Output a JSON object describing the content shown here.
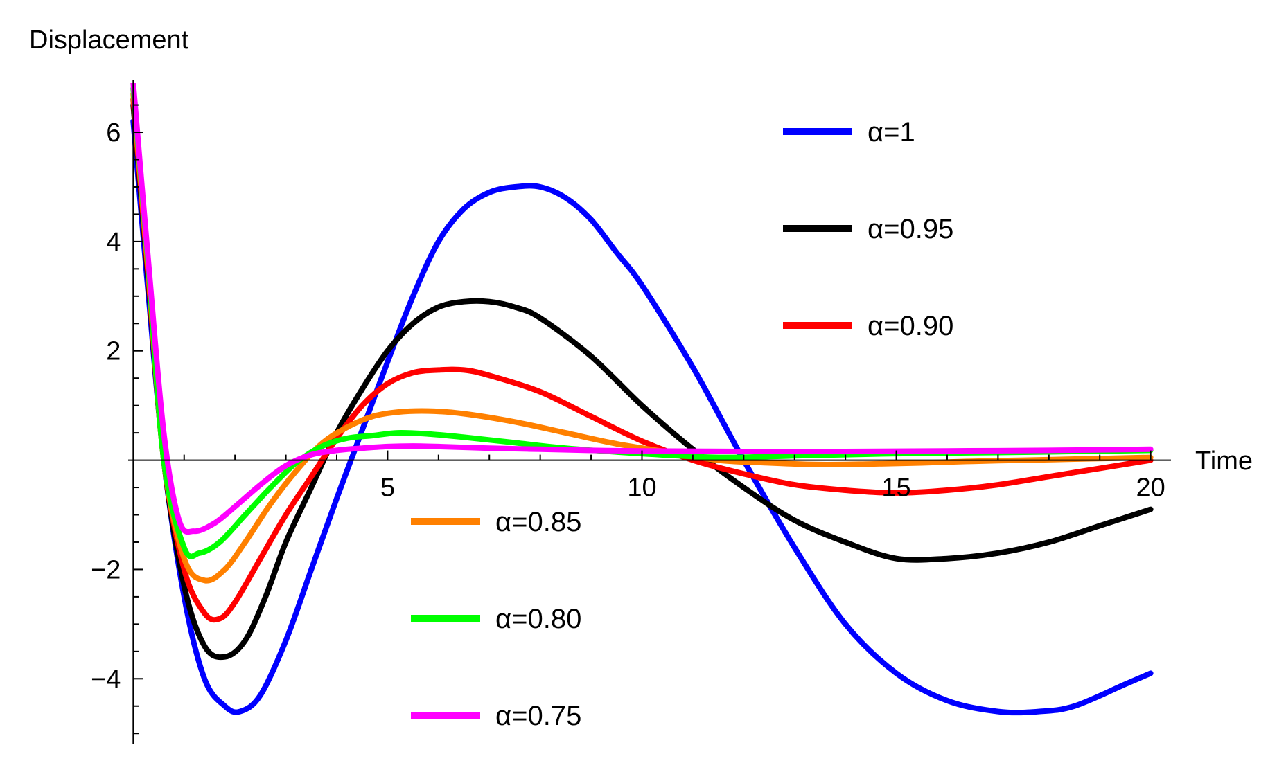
{
  "chart_data": {
    "type": "line",
    "ylabel": "Displacement",
    "xlabel": "Time",
    "xlim": [
      -0.1,
      20.4
    ],
    "ylim": [
      -5.2,
      6.9
    ],
    "x_ticks": [
      5,
      10,
      15,
      20
    ],
    "y_ticks": [
      -4,
      -2,
      2,
      4,
      6
    ],
    "y_tick_labels": [
      "−4",
      "−2",
      "2",
      "4",
      "6"
    ],
    "grid": false,
    "series": [
      {
        "name": "α=1",
        "color": "#0000ff",
        "x": [
          0,
          0.3,
          0.6,
          1.0,
          1.4,
          1.8,
          2.1,
          2.5,
          3.0,
          3.5,
          4.0,
          4.4,
          5.0,
          5.5,
          6.0,
          6.5,
          7.0,
          7.5,
          8.0,
          8.5,
          9.0,
          9.5,
          10.0,
          11.0,
          12.0,
          13.0,
          14.0,
          15.0,
          16.0,
          17.0,
          17.8,
          18.5,
          19.5,
          20.0
        ],
        "y": [
          6.2,
          3.0,
          0.0,
          -2.5,
          -4.0,
          -4.5,
          -4.6,
          -4.3,
          -3.3,
          -2.0,
          -0.7,
          0.3,
          1.8,
          3.0,
          4.0,
          4.6,
          4.9,
          5.0,
          5.0,
          4.8,
          4.4,
          3.8,
          3.2,
          1.7,
          0.0,
          -1.6,
          -3.0,
          -3.9,
          -4.4,
          -4.6,
          -4.6,
          -4.5,
          -4.1,
          -3.9
        ]
      },
      {
        "name": "α=0.95",
        "color": "#000000",
        "x": [
          0,
          0.3,
          0.6,
          1.0,
          1.4,
          1.8,
          2.2,
          2.6,
          3.0,
          3.5,
          4.0,
          4.5,
          5.0,
          5.5,
          6.0,
          6.5,
          7.0,
          7.5,
          8.0,
          9.0,
          10.0,
          11.0,
          12.0,
          13.0,
          14.0,
          15.0,
          16.0,
          17.0,
          18.0,
          19.0,
          20.0
        ],
        "y": [
          6.5,
          3.2,
          0.0,
          -2.3,
          -3.4,
          -3.6,
          -3.3,
          -2.5,
          -1.5,
          -0.5,
          0.5,
          1.3,
          2.0,
          2.5,
          2.8,
          2.9,
          2.9,
          2.8,
          2.6,
          1.9,
          1.0,
          0.2,
          -0.5,
          -1.1,
          -1.5,
          -1.8,
          -1.8,
          -1.7,
          -1.5,
          -1.2,
          -0.9
        ]
      },
      {
        "name": "α=0.90",
        "color": "#ff0000",
        "x": [
          0,
          0.3,
          0.6,
          1.0,
          1.4,
          1.7,
          2.0,
          2.5,
          3.0,
          3.5,
          4.0,
          4.5,
          5.0,
          5.5,
          6.0,
          6.5,
          7.0,
          8.0,
          9.0,
          10.0,
          11.0,
          12.0,
          13.0,
          14.0,
          15.0,
          16.0,
          17.0,
          18.0,
          19.0,
          20.0
        ],
        "y": [
          6.6,
          3.3,
          0.0,
          -2.0,
          -2.8,
          -2.9,
          -2.6,
          -1.8,
          -1.0,
          -0.3,
          0.4,
          1.0,
          1.4,
          1.6,
          1.65,
          1.65,
          1.55,
          1.25,
          0.8,
          0.35,
          0.0,
          -0.25,
          -0.45,
          -0.55,
          -0.6,
          -0.55,
          -0.45,
          -0.3,
          -0.15,
          0.0
        ]
      },
      {
        "name": "α=0.85",
        "color": "#ff8000",
        "x": [
          0,
          0.3,
          0.6,
          1.0,
          1.4,
          1.8,
          2.2,
          2.7,
          3.2,
          3.7,
          4.2,
          4.7,
          5.2,
          5.8,
          6.5,
          7.5,
          8.5,
          9.5,
          10.5,
          11.5,
          12.5,
          13.5,
          14.5,
          15.5,
          16.5,
          17.5,
          18.5,
          20.0
        ],
        "y": [
          6.7,
          3.4,
          0.0,
          -1.8,
          -2.2,
          -2.0,
          -1.5,
          -0.8,
          -0.2,
          0.3,
          0.6,
          0.8,
          0.88,
          0.9,
          0.85,
          0.7,
          0.5,
          0.3,
          0.15,
          0.0,
          -0.05,
          -0.08,
          -0.07,
          -0.05,
          -0.02,
          0.0,
          0.02,
          0.05
        ]
      },
      {
        "name": "α=0.80",
        "color": "#00ff00",
        "x": [
          0,
          0.3,
          0.6,
          1.0,
          1.3,
          1.7,
          2.2,
          2.7,
          3.2,
          3.7,
          4.2,
          4.7,
          5.2,
          5.8,
          6.5,
          7.5,
          8.5,
          10.0,
          11.5,
          13.0,
          15.0,
          17.0,
          20.0
        ],
        "y": [
          6.8,
          3.5,
          0.0,
          -1.6,
          -1.7,
          -1.5,
          -1.0,
          -0.5,
          -0.05,
          0.25,
          0.4,
          0.45,
          0.5,
          0.48,
          0.42,
          0.32,
          0.22,
          0.12,
          0.05,
          0.08,
          0.12,
          0.14,
          0.18
        ]
      },
      {
        "name": "α=0.75",
        "color": "#ff00ff",
        "x": [
          0,
          0.3,
          0.6,
          0.9,
          1.2,
          1.6,
          2.0,
          2.5,
          3.0,
          3.5,
          4.0,
          4.5,
          5.0,
          5.5,
          6.0,
          7.0,
          8.0,
          9.0,
          10.0,
          12.0,
          14.0,
          16.0,
          18.0,
          20.0
        ],
        "y": [
          6.9,
          3.6,
          0.5,
          -1.1,
          -1.3,
          -1.15,
          -0.85,
          -0.45,
          -0.1,
          0.1,
          0.18,
          0.22,
          0.25,
          0.26,
          0.25,
          0.22,
          0.2,
          0.18,
          0.17,
          0.16,
          0.16,
          0.17,
          0.18,
          0.2
        ]
      }
    ],
    "legend": {
      "right_group": [
        "α=1",
        "α=0.95",
        "α=0.90"
      ],
      "lower_group": [
        "α=0.85",
        "α=0.80",
        "α=0.75"
      ]
    }
  }
}
